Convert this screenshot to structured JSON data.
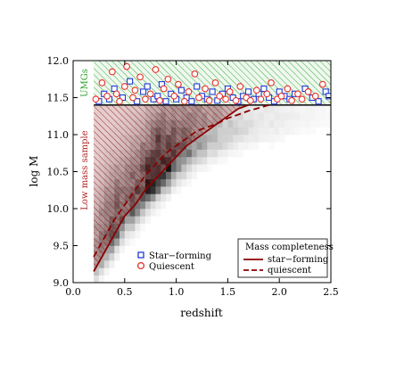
{
  "chart_data": {
    "type": "heatmap",
    "xlabel": "redshift",
    "ylabel": "log M",
    "xlim": [
      0.0,
      2.5
    ],
    "ylim": [
      9.0,
      12.0
    ],
    "xticks": [
      {
        "v": 0.0,
        "label": "0.0"
      },
      {
        "v": 0.5,
        "label": "0.5"
      },
      {
        "v": 1.0,
        "label": "1.0"
      },
      {
        "v": 1.5,
        "label": "1.5"
      },
      {
        "v": 2.0,
        "label": "2.0"
      },
      {
        "v": 2.5,
        "label": "2.5"
      }
    ],
    "yticks": [
      {
        "v": 9.0,
        "label": "9.0"
      },
      {
        "v": 9.5,
        "label": "9.5"
      },
      {
        "v": 10.0,
        "label": "10.0"
      },
      {
        "v": 10.5,
        "label": "10.5"
      },
      {
        "v": 11.0,
        "label": "11.0"
      },
      {
        "v": 11.5,
        "label": "11.5"
      },
      {
        "v": 12.0,
        "label": "12.0"
      }
    ],
    "regions": {
      "umg": {
        "label": "UMGs",
        "x": [
          0.2,
          2.5
        ],
        "y": [
          11.4,
          12.0
        ],
        "color": "#2ca02c"
      },
      "low_mass": {
        "label": "Low mass sample",
        "x": [
          0.2,
          1.2
        ],
        "y_top": 11.4,
        "color": "#8b1a1a"
      }
    },
    "umg_threshold": 11.4,
    "completeness_legend": {
      "title": "Mass completeness",
      "series": [
        {
          "name": "star−forming",
          "style": "solid",
          "color": "#8b0000",
          "points": [
            [
              0.2,
              9.15
            ],
            [
              0.3,
              9.4
            ],
            [
              0.4,
              9.65
            ],
            [
              0.5,
              9.9
            ],
            [
              0.6,
              10.05
            ],
            [
              0.7,
              10.25
            ],
            [
              0.8,
              10.4
            ],
            [
              0.9,
              10.55
            ],
            [
              1.0,
              10.7
            ],
            [
              1.1,
              10.85
            ],
            [
              1.2,
              10.95
            ],
            [
              1.3,
              11.05
            ],
            [
              1.4,
              11.15
            ],
            [
              1.5,
              11.25
            ],
            [
              1.6,
              11.35
            ],
            [
              1.7,
              11.4
            ]
          ]
        },
        {
          "name": "quiescent",
          "style": "dashed",
          "color": "#8b0000",
          "points": [
            [
              0.2,
              9.35
            ],
            [
              0.3,
              9.6
            ],
            [
              0.4,
              9.85
            ],
            [
              0.5,
              10.05
            ],
            [
              0.6,
              10.25
            ],
            [
              0.7,
              10.45
            ],
            [
              0.8,
              10.6
            ],
            [
              0.9,
              10.75
            ],
            [
              1.0,
              10.85
            ],
            [
              1.1,
              10.95
            ],
            [
              1.2,
              11.05
            ],
            [
              1.3,
              11.1
            ],
            [
              1.4,
              11.15
            ],
            [
              1.5,
              11.22
            ],
            [
              1.6,
              11.27
            ],
            [
              1.7,
              11.32
            ],
            [
              1.8,
              11.36
            ],
            [
              1.9,
              11.4
            ]
          ]
        }
      ]
    },
    "markers_legend": [
      {
        "name": "Star−forming",
        "marker": "square",
        "color": "#1f3bd6"
      },
      {
        "name": "Quiescent",
        "marker": "circle",
        "color": "#e8312a"
      }
    ],
    "density": {
      "bin_dx": 0.05,
      "bin_dy": 0.1,
      "columns": [
        {
          "x": 0.2,
          "ridge": 9.3,
          "peak": 0.35
        },
        {
          "x": 0.3,
          "ridge": 9.55,
          "peak": 0.55
        },
        {
          "x": 0.4,
          "ridge": 9.75,
          "peak": 0.65
        },
        {
          "x": 0.5,
          "ridge": 9.95,
          "peak": 0.55
        },
        {
          "x": 0.6,
          "ridge": 10.1,
          "peak": 0.65
        },
        {
          "x": 0.7,
          "ridge": 10.3,
          "peak": 0.8
        },
        {
          "x": 0.8,
          "ridge": 10.45,
          "peak": 0.95
        },
        {
          "x": 0.9,
          "ridge": 10.55,
          "peak": 0.8
        },
        {
          "x": 1.0,
          "ridge": 10.7,
          "peak": 0.6
        },
        {
          "x": 1.1,
          "ridge": 10.8,
          "peak": 0.5
        },
        {
          "x": 1.2,
          "ridge": 10.9,
          "peak": 0.4
        },
        {
          "x": 1.3,
          "ridge": 10.95,
          "peak": 0.3
        },
        {
          "x": 1.4,
          "ridge": 11.0,
          "peak": 0.25
        },
        {
          "x": 1.5,
          "ridge": 11.05,
          "peak": 0.2
        },
        {
          "x": 1.6,
          "ridge": 11.1,
          "peak": 0.15
        },
        {
          "x": 1.7,
          "ridge": 11.1,
          "peak": 0.12
        },
        {
          "x": 1.8,
          "ridge": 11.15,
          "peak": 0.1
        },
        {
          "x": 1.9,
          "ridge": 11.15,
          "peak": 0.08
        },
        {
          "x": 2.0,
          "ridge": 11.2,
          "peak": 0.07
        },
        {
          "x": 2.1,
          "ridge": 11.2,
          "peak": 0.06
        },
        {
          "x": 2.2,
          "ridge": 11.25,
          "peak": 0.05
        },
        {
          "x": 2.3,
          "ridge": 11.25,
          "peak": 0.04
        },
        {
          "x": 2.4,
          "ridge": 11.3,
          "peak": 0.03
        }
      ]
    },
    "umg_points": {
      "star_forming": [
        [
          0.25,
          11.45
        ],
        [
          0.3,
          11.55
        ],
        [
          0.35,
          11.48
        ],
        [
          0.4,
          11.62
        ],
        [
          0.48,
          11.5
        ],
        [
          0.55,
          11.72
        ],
        [
          0.62,
          11.45
        ],
        [
          0.68,
          11.58
        ],
        [
          0.72,
          11.65
        ],
        [
          0.78,
          11.48
        ],
        [
          0.82,
          11.52
        ],
        [
          0.86,
          11.68
        ],
        [
          0.9,
          11.45
        ],
        [
          0.95,
          11.55
        ],
        [
          1.0,
          11.48
        ],
        [
          1.05,
          11.6
        ],
        [
          1.1,
          11.5
        ],
        [
          1.15,
          11.45
        ],
        [
          1.2,
          11.65
        ],
        [
          1.25,
          11.52
        ],
        [
          1.3,
          11.48
        ],
        [
          1.35,
          11.58
        ],
        [
          1.4,
          11.46
        ],
        [
          1.45,
          11.55
        ],
        [
          1.5,
          11.62
        ],
        [
          1.55,
          11.5
        ],
        [
          1.6,
          11.45
        ],
        [
          1.65,
          11.52
        ],
        [
          1.7,
          11.58
        ],
        [
          1.75,
          11.48
        ],
        [
          1.8,
          11.55
        ],
        [
          1.85,
          11.62
        ],
        [
          1.9,
          11.5
        ],
        [
          1.95,
          11.45
        ],
        [
          2.0,
          11.58
        ],
        [
          2.05,
          11.52
        ],
        [
          2.1,
          11.48
        ],
        [
          2.15,
          11.55
        ],
        [
          2.25,
          11.62
        ],
        [
          2.32,
          11.5
        ],
        [
          2.38,
          11.45
        ],
        [
          2.45,
          11.58
        ],
        [
          2.48,
          11.52
        ]
      ],
      "quiescent": [
        [
          0.22,
          11.48
        ],
        [
          0.28,
          11.7
        ],
        [
          0.33,
          11.52
        ],
        [
          0.38,
          11.85
        ],
        [
          0.42,
          11.55
        ],
        [
          0.45,
          11.45
        ],
        [
          0.5,
          11.65
        ],
        [
          0.52,
          11.92
        ],
        [
          0.58,
          11.5
        ],
        [
          0.6,
          11.6
        ],
        [
          0.65,
          11.78
        ],
        [
          0.7,
          11.48
        ],
        [
          0.75,
          11.55
        ],
        [
          0.8,
          11.88
        ],
        [
          0.84,
          11.46
        ],
        [
          0.88,
          11.62
        ],
        [
          0.92,
          11.75
        ],
        [
          0.98,
          11.52
        ],
        [
          1.02,
          11.68
        ],
        [
          1.08,
          11.45
        ],
        [
          1.12,
          11.58
        ],
        [
          1.18,
          11.82
        ],
        [
          1.22,
          11.5
        ],
        [
          1.28,
          11.62
        ],
        [
          1.32,
          11.46
        ],
        [
          1.38,
          11.7
        ],
        [
          1.42,
          11.52
        ],
        [
          1.48,
          11.48
        ],
        [
          1.52,
          11.58
        ],
        [
          1.58,
          11.46
        ],
        [
          1.62,
          11.65
        ],
        [
          1.68,
          11.5
        ],
        [
          1.72,
          11.46
        ],
        [
          1.78,
          11.6
        ],
        [
          1.82,
          11.48
        ],
        [
          1.88,
          11.55
        ],
        [
          1.92,
          11.7
        ],
        [
          1.98,
          11.48
        ],
        [
          2.02,
          11.52
        ],
        [
          2.08,
          11.62
        ],
        [
          2.12,
          11.46
        ],
        [
          2.18,
          11.55
        ],
        [
          2.22,
          11.48
        ],
        [
          2.28,
          11.58
        ],
        [
          2.35,
          11.52
        ],
        [
          2.42,
          11.68
        ]
      ]
    }
  }
}
